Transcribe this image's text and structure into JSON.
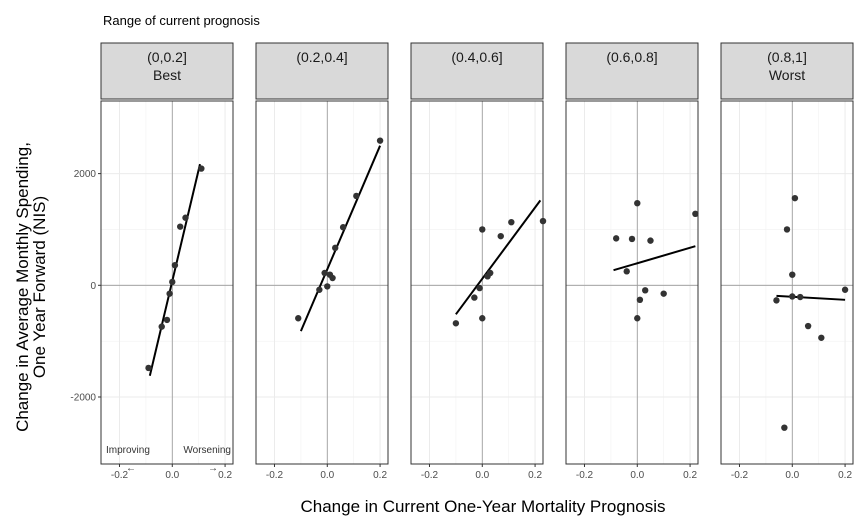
{
  "chart_data": {
    "type": "scatter",
    "title": "Range of current prognosis",
    "xlabel": "Change in Current One-Year Mortality Prognosis",
    "ylabel_lines": [
      "Change in Average Monthly Spending,",
      "One Year Forward (NIS)"
    ],
    "xlim": [
      -0.27,
      0.23
    ],
    "ylim": [
      -3200,
      3300
    ],
    "x_ticks": [
      -0.2,
      0.0,
      0.2
    ],
    "x_tick_labels": [
      "-0.2",
      "0.0",
      "0.2"
    ],
    "y_ticks": [
      -2000,
      0,
      2000
    ],
    "y_tick_labels": [
      "-2000",
      "0",
      "2000"
    ],
    "grid": true,
    "reference_lines": {
      "x": 0,
      "y": 0
    },
    "annotations": [
      {
        "text": "Improving",
        "arrow": "←"
      },
      {
        "text": "Worsening",
        "arrow": "→"
      }
    ],
    "panels": [
      {
        "label_lines": [
          "(0,0.2]",
          "Best"
        ],
        "points": [
          [
            -0.09,
            -1480
          ],
          [
            -0.04,
            -740
          ],
          [
            -0.02,
            -620
          ],
          [
            -0.01,
            -150
          ],
          [
            0.0,
            60
          ],
          [
            0.01,
            360
          ],
          [
            0.03,
            1050
          ],
          [
            0.05,
            1210
          ],
          [
            0.11,
            2090
          ]
        ],
        "fit_line": [
          [
            -0.085,
            -1620
          ],
          [
            0.105,
            2170
          ]
        ]
      },
      {
        "label_lines": [
          "(0.2,0.4]"
        ],
        "points": [
          [
            -0.11,
            -590
          ],
          [
            -0.03,
            -80
          ],
          [
            -0.01,
            220
          ],
          [
            0.0,
            -20
          ],
          [
            0.01,
            190
          ],
          [
            0.02,
            130
          ],
          [
            0.03,
            670
          ],
          [
            0.06,
            1040
          ],
          [
            0.11,
            1600
          ],
          [
            0.2,
            2590
          ]
        ],
        "fit_line": [
          [
            -0.1,
            -820
          ],
          [
            0.2,
            2500
          ]
        ]
      },
      {
        "label_lines": [
          "(0.4,0.6]"
        ],
        "points": [
          [
            -0.1,
            -680
          ],
          [
            -0.03,
            -220
          ],
          [
            -0.01,
            -50
          ],
          [
            0.0,
            -590
          ],
          [
            0.0,
            1000
          ],
          [
            0.02,
            160
          ],
          [
            0.03,
            220
          ],
          [
            0.07,
            880
          ],
          [
            0.11,
            1130
          ],
          [
            0.23,
            1150
          ]
        ],
        "fit_line": [
          [
            -0.1,
            -520
          ],
          [
            0.22,
            1520
          ]
        ]
      },
      {
        "label_lines": [
          "(0.6,0.8]"
        ],
        "points": [
          [
            -0.08,
            840
          ],
          [
            -0.04,
            250
          ],
          [
            -0.02,
            830
          ],
          [
            0.0,
            -590
          ],
          [
            0.0,
            1470
          ],
          [
            0.01,
            -260
          ],
          [
            0.03,
            -90
          ],
          [
            0.05,
            800
          ],
          [
            0.1,
            -150
          ],
          [
            0.22,
            1280
          ]
        ],
        "fit_line": [
          [
            -0.09,
            270
          ],
          [
            0.22,
            700
          ]
        ]
      },
      {
        "label_lines": [
          "(0.8,1]",
          "Worst"
        ],
        "points": [
          [
            -0.06,
            -270
          ],
          [
            -0.03,
            -2550
          ],
          [
            -0.02,
            1000
          ],
          [
            0.0,
            -200
          ],
          [
            0.0,
            190
          ],
          [
            0.01,
            1560
          ],
          [
            0.03,
            -210
          ],
          [
            0.06,
            -730
          ],
          [
            0.11,
            -940
          ],
          [
            0.2,
            -80
          ]
        ],
        "fit_line": [
          [
            -0.06,
            -190
          ],
          [
            0.2,
            -260
          ]
        ]
      }
    ]
  }
}
